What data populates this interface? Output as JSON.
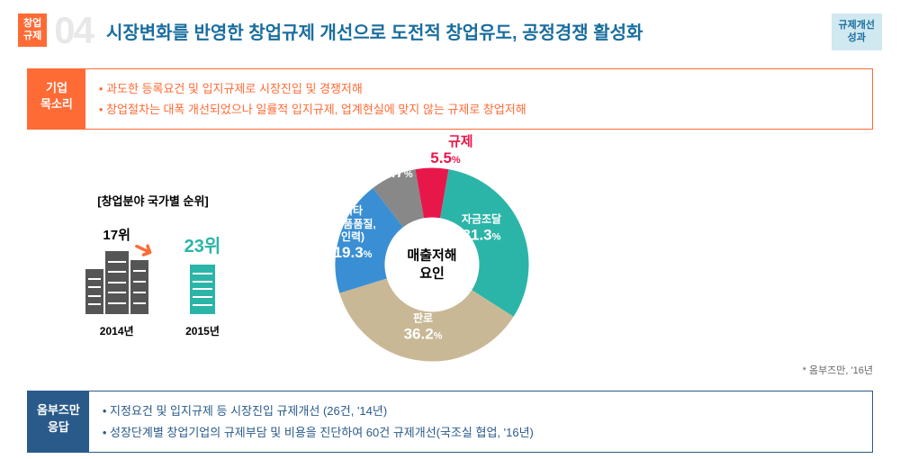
{
  "header": {
    "badge_left_line1": "창업",
    "badge_left_line2": "규제",
    "number": "04",
    "title": "시장변화를 반영한 창업규제 개선으로 도전적 창업유도, 공정경쟁 활성화",
    "badge_right_line1": "규제개선",
    "badge_right_line2": "성과"
  },
  "voice": {
    "label_line1": "기업",
    "label_line2": "목소리",
    "items": [
      "과도한 등록요건 및 입지규제로 시장진입 및 경쟁저해",
      "창업절차는 대폭 개선되었으나 일률적 입지규제, 업계현실에 맞지 않는 규제로 창업저해"
    ]
  },
  "rank": {
    "title": "[창업분야 국가별 순위]",
    "y2014": {
      "value": "17위",
      "year": "2014년"
    },
    "y2015": {
      "value": "23위",
      "year": "2015년"
    },
    "building_colors": {
      "dark": "#555555",
      "teal": "#2bb5a8"
    },
    "arrow_color": "#ff6b35"
  },
  "donut": {
    "center_line1": "매출저해",
    "center_line2": "요인",
    "regulation_title": "규제",
    "regulation_color": "#e8174a",
    "source": "* 옴부즈만, '16년",
    "slices": [
      {
        "label": "자금조달",
        "value": 31.3,
        "color": "#2bb5a8"
      },
      {
        "label": "판로",
        "value": 36.2,
        "color": "#c9b896"
      },
      {
        "label": "기타\n(제품품질,\n인력)",
        "value": 19.3,
        "color": "#3a8fd4"
      },
      {
        "label": "",
        "value": 7.7,
        "color": "#888888"
      },
      {
        "label": "규제",
        "value": 5.5,
        "color": "#e8174a"
      }
    ],
    "stroke_width": 55,
    "radius": 80
  },
  "response": {
    "label_line1": "옴부즈만",
    "label_line2": "응답",
    "items": [
      "지정요건 및 입지규제 등 시장진입 규제개선 (26건, '14년)",
      "성장단계별 창업기업의 규제부담 및 비용을 진단하여 60건 규제개선(국조실 협업, '16년)"
    ]
  },
  "colors": {
    "orange": "#ff6b35",
    "blue_header": "#1a6e9e",
    "blue_box": "#2a5a8a",
    "blue_badge_bg": "#d0e8f0"
  }
}
